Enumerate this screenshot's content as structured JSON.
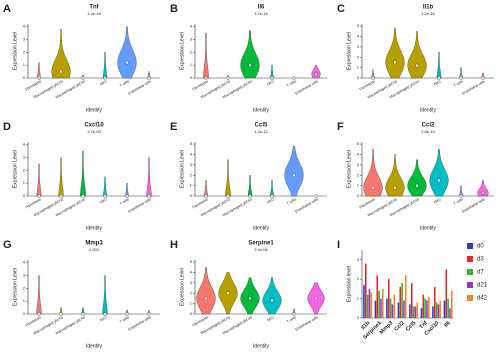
{
  "chart_data": [
    {
      "type": "violin",
      "panel": "A",
      "title": "Tnf",
      "subtitle": "1.2e-16",
      "y_label": "Expression Level",
      "x_label": "Identity",
      "categories": [
        "Fibroblasts",
        "Macrophage(Ly6Chi)",
        "Macrophage(Ly6Clo)",
        "NKC",
        "T cells",
        "Endothelial cells"
      ],
      "colors": [
        "#f8766d",
        "#b79f00",
        "#00ba38",
        "#00bfc4",
        "#619cff",
        "#f564e3"
      ],
      "max": [
        1.2,
        3.8,
        0.2,
        2.0,
        4.0,
        0.5
      ],
      "median": [
        0,
        0.5,
        0,
        0,
        1.2,
        0
      ],
      "ylim": [
        0,
        4.2
      ],
      "yticks": [
        0,
        1,
        2,
        3,
        4
      ]
    },
    {
      "type": "violin",
      "panel": "B",
      "title": "Il6",
      "subtitle": "1.2e-16",
      "y_label": "Expression Level",
      "x_label": "Identity",
      "categories": [
        "Fibroblasts",
        "Macrophage(Ly6Chi)",
        "Macrophage(Ly6Clo)",
        "NKC",
        "T cells",
        "Endothelial cells"
      ],
      "colors": [
        "#f8766d",
        "#b79f00",
        "#00ba38",
        "#00bfc4",
        "#619cff",
        "#f564e3"
      ],
      "max": [
        3.5,
        0.2,
        3.7,
        1.0,
        0,
        1.0
      ],
      "median": [
        0,
        0,
        1.0,
        0,
        0,
        0.3
      ],
      "ylim": [
        0,
        4.2
      ],
      "yticks": [
        0,
        1,
        2,
        3,
        4
      ]
    },
    {
      "type": "violin",
      "panel": "C",
      "title": "Il1b",
      "subtitle": "1.2e-16",
      "y_label": "Expression Level",
      "x_label": "Identity",
      "categories": [
        "Fibroblasts",
        "Macrophage(Ly6Chi)",
        "Macrophage(Ly6Clo)",
        "NKC",
        "T cells",
        "Endothelial cells"
      ],
      "colors": [
        "#f8766d",
        "#b79f00",
        "#b79f00",
        "#00bfc4",
        "#619cff",
        "#f564e3"
      ],
      "max": [
        0.8,
        4.8,
        4.5,
        2.5,
        1.0,
        0.5
      ],
      "median": [
        0,
        1.5,
        1.2,
        0,
        0,
        0
      ],
      "ylim": [
        0,
        5.2
      ],
      "yticks": [
        0,
        1,
        2,
        3,
        4,
        5
      ]
    },
    {
      "type": "violin",
      "panel": "D",
      "title": "Cxcl10",
      "subtitle": "1.7e-03",
      "y_label": "Expression Level",
      "x_label": "Identity",
      "categories": [
        "Fibroblasts",
        "Macrophage(Ly6Chi)",
        "Macrophage(Ly6Clo)",
        "NKC",
        "T cells",
        "Endothelial cells"
      ],
      "colors": [
        "#f8766d",
        "#b79f00",
        "#00ba38",
        "#00bfc4",
        "#619cff",
        "#f564e3"
      ],
      "max": [
        2.5,
        3.0,
        3.5,
        1.5,
        1.0,
        3.0
      ],
      "median": [
        0,
        0,
        0,
        0,
        0,
        0
      ],
      "ylim": [
        0,
        4.2
      ],
      "yticks": [
        0,
        1,
        2,
        3,
        4
      ]
    },
    {
      "type": "violin",
      "panel": "E",
      "title": "Ccl5",
      "subtitle": "1.2e-12",
      "y_label": "Expression Level",
      "x_label": "Identity",
      "categories": [
        "Fibroblasts",
        "Macrophage(Ly6Chi)",
        "Macrophage(Ly6Clo)",
        "NKC",
        "T cells",
        "Endothelial cells"
      ],
      "colors": [
        "#f8766d",
        "#b79f00",
        "#00ba38",
        "#00bfc4",
        "#619cff",
        "#f564e3"
      ],
      "max": [
        1.5,
        3.5,
        2.0,
        1.5,
        4.8,
        0
      ],
      "median": [
        0,
        0,
        0,
        0,
        2.0,
        0
      ],
      "ylim": [
        0,
        5.2
      ],
      "yticks": [
        0,
        1,
        2,
        3,
        4,
        5
      ]
    },
    {
      "type": "violin",
      "panel": "F",
      "title": "Ccl2",
      "subtitle": "2.6e-10",
      "y_label": "Expression Level",
      "x_label": "Identity",
      "categories": [
        "Fibroblasts",
        "Macrophage(Ly6Chi)",
        "Macrophage(Ly6Clo)",
        "NKC",
        "T cells",
        "Endothelial cells"
      ],
      "colors": [
        "#f8766d",
        "#b79f00",
        "#00ba38",
        "#00bfc4",
        "#619cff",
        "#f564e3"
      ],
      "max": [
        4.5,
        4.0,
        3.5,
        4.5,
        1.0,
        1.5
      ],
      "median": [
        0.8,
        0.8,
        1.0,
        1.5,
        0,
        0.3
      ],
      "ylim": [
        0,
        5.2
      ],
      "yticks": [
        0,
        1,
        2,
        3,
        4,
        5
      ]
    },
    {
      "type": "violin",
      "panel": "G",
      "title": "Mmp3",
      "subtitle": "0.003",
      "y_label": "Expression Level",
      "x_label": "Identity",
      "categories": [
        "Fibroblasts",
        "Macrophage(Ly6Chi)",
        "Macrophage(Ly6Clo)",
        "NKC",
        "T cells",
        "Endothelial cells"
      ],
      "colors": [
        "#f8766d",
        "#b79f00",
        "#00ba38",
        "#00bfc4",
        "#619cff",
        "#f564e3"
      ],
      "max": [
        3.0,
        0.5,
        0.5,
        3.0,
        0.3,
        0.3
      ],
      "median": [
        0,
        0,
        0,
        0,
        0,
        0
      ],
      "ylim": [
        0,
        4.2
      ],
      "yticks": [
        0,
        1,
        2,
        3,
        4
      ]
    },
    {
      "type": "violin",
      "panel": "H",
      "title": "Serpine1",
      "subtitle": "2.4e-06",
      "y_label": "Expression Level",
      "x_label": "Identity",
      "categories": [
        "Fibroblasts",
        "Macrophage(Ly6Chi)",
        "Macrophage(Ly6Clo)",
        "NKC",
        "T cells",
        "Endothelial cells"
      ],
      "colors": [
        "#f8766d",
        "#b79f00",
        "#00ba38",
        "#00bfc4",
        "#619cff",
        "#f564e3"
      ],
      "max": [
        4.5,
        4.0,
        3.5,
        3.5,
        0.5,
        3.0
      ],
      "median": [
        1.5,
        2.0,
        1.5,
        1.3,
        0,
        1.5
      ],
      "ylim": [
        0,
        5.2
      ],
      "yticks": [
        0,
        1,
        2,
        3,
        4,
        5
      ]
    },
    {
      "type": "bar",
      "panel": "I",
      "y_label": "Expression level",
      "categories": [
        "Il1b",
        "Serpine1",
        "Mmp3",
        "Ccl2",
        "Ccl5",
        "Tnf",
        "Cxcl10",
        "Il6"
      ],
      "series": [
        {
          "name": "d0",
          "color": "#1f3fd6",
          "values": [
            1.7,
            0.9,
            1.0,
            0.8,
            0.7,
            0.5,
            0.6,
            0.9
          ]
        },
        {
          "name": "d3",
          "color": "#e8281e",
          "values": [
            2.8,
            2.2,
            2.0,
            1.6,
            1.8,
            1.2,
            1.6,
            2.5
          ]
        },
        {
          "name": "d7",
          "color": "#2fb52f",
          "values": [
            1.2,
            1.4,
            1.0,
            1.8,
            0.6,
            1.0,
            0.8,
            1.0
          ]
        },
        {
          "name": "d21",
          "color": "#9b2fc9",
          "values": [
            1.5,
            1.0,
            0.7,
            0.9,
            0.6,
            0.9,
            0.7,
            0.5
          ]
        },
        {
          "name": "d42",
          "color": "#f5862a",
          "values": [
            1.3,
            1.5,
            1.2,
            2.2,
            0.8,
            1.1,
            0.9,
            1.4
          ]
        }
      ],
      "ylim": [
        0,
        3.5
      ],
      "yticks": [
        0,
        1,
        2,
        3
      ]
    }
  ]
}
